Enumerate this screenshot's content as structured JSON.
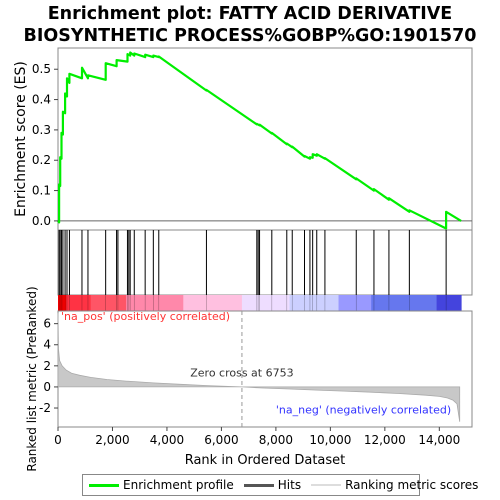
{
  "title_line1": "Enrichment plot: FATTY ACID DERIVATIVE",
  "title_line2": "BIOSYNTHETIC PROCESS%GOBP%GO:1901570",
  "colors": {
    "es_line": "#00ee00",
    "hits": "#000000",
    "metric_fill": "#c8c8c8",
    "pos_label": "#ff3333",
    "neg_label": "#3333ff",
    "zero_cross_line": "#999999"
  },
  "chart_data": {
    "type": "line",
    "title": "Enrichment plot: FATTY ACID DERIVATIVE BIOSYNTHETIC PROCESS%GOBP%GO:1901570",
    "xlabel": "Rank in Ordered Dataset",
    "ylabel_top": "Enrichment score (ES)",
    "ylabel_bottom": "Ranked list metric (PreRanked)",
    "xlim": [
      0,
      15200
    ],
    "x_ticks": [
      0,
      2000,
      4000,
      6000,
      8000,
      10000,
      12000,
      14000
    ],
    "x_tick_labels": [
      "0",
      "2,000",
      "4,000",
      "6,000",
      "8,000",
      "10,000",
      "12,000",
      "14,000"
    ],
    "es_ylim": [
      -0.03,
      0.57
    ],
    "es_ticks": [
      0.0,
      0.1,
      0.2,
      0.3,
      0.4,
      0.5
    ],
    "es_tick_labels": [
      "0.0",
      "0.1",
      "0.2",
      "0.3",
      "0.4",
      "0.5"
    ],
    "metric_ylim": [
      -3.8,
      7.2
    ],
    "metric_ticks": [
      -2,
      0,
      2,
      4,
      6
    ],
    "metric_tick_labels": [
      "-2",
      "0",
      "2",
      "4",
      "6"
    ],
    "series": [
      {
        "name": "Enrichment profile",
        "x": [
          0,
          40,
          40,
          80,
          80,
          130,
          130,
          180,
          180,
          260,
          260,
          330,
          330,
          420,
          420,
          880,
          880,
          1100,
          1100,
          1750,
          1750,
          2150,
          2150,
          2550,
          2550,
          2650,
          2650,
          2800,
          2800,
          3200,
          3200,
          3500,
          3500,
          3700,
          3700,
          5450,
          5450,
          7300,
          7300,
          7400,
          7400,
          7850,
          7850,
          8400,
          8400,
          8600,
          8600,
          9050,
          9050,
          9250,
          9250,
          9350,
          9350,
          9500,
          9500,
          9800,
          9800,
          10950,
          10950,
          11600,
          11600,
          12150,
          12150,
          12900,
          12900,
          14250,
          14250,
          14800
        ],
        "y": [
          0.0,
          -0.005,
          0.12,
          0.115,
          0.21,
          0.205,
          0.29,
          0.285,
          0.36,
          0.355,
          0.42,
          0.41,
          0.47,
          0.455,
          0.485,
          0.47,
          0.505,
          0.47,
          0.48,
          0.465,
          0.52,
          0.51,
          0.53,
          0.525,
          0.55,
          0.545,
          0.555,
          0.545,
          0.552,
          0.54,
          0.548,
          0.54,
          0.545,
          0.54,
          0.542,
          0.43,
          0.432,
          0.318,
          0.32,
          0.315,
          0.317,
          0.288,
          0.29,
          0.253,
          0.255,
          0.243,
          0.245,
          0.212,
          0.214,
          0.205,
          0.21,
          0.208,
          0.22,
          0.215,
          0.22,
          0.205,
          0.207,
          0.137,
          0.14,
          0.1,
          0.105,
          0.07,
          0.075,
          0.03,
          0.035,
          -0.025,
          0.03,
          0.0
        ]
      }
    ],
    "hits_x": [
      40,
      80,
      130,
      180,
      260,
      330,
      420,
      880,
      1100,
      1750,
      2150,
      2200,
      2550,
      2600,
      2650,
      2800,
      3200,
      3500,
      3700,
      5450,
      7300,
      7350,
      7400,
      7850,
      8400,
      8600,
      9050,
      9250,
      9350,
      9500,
      9800,
      10950,
      11600,
      12150,
      12900,
      14250
    ],
    "ranked_metric": {
      "x": [
        0,
        20,
        60,
        150,
        300,
        500,
        800,
        1200,
        1800,
        2500,
        3500,
        4500,
        5500,
        6000,
        6753,
        7500,
        8500,
        9500,
        10500,
        11500,
        12500,
        13500,
        14000,
        14300,
        14500,
        14650,
        14750
      ],
      "y": [
        7.0,
        3.6,
        2.5,
        2.0,
        1.6,
        1.3,
        1.1,
        0.9,
        0.7,
        0.55,
        0.38,
        0.25,
        0.13,
        0.08,
        0.0,
        -0.1,
        -0.2,
        -0.3,
        -0.4,
        -0.5,
        -0.62,
        -0.78,
        -0.9,
        -1.05,
        -1.25,
        -1.6,
        -3.3
      ]
    },
    "zero_cross": {
      "x": 6753,
      "label": "Zero cross at 6753"
    },
    "annotations": {
      "pos": "'na_pos' (positively correlated)",
      "neg": "'na_neg' (negatively correlated)"
    },
    "gradient_bar": {
      "x": [
        0,
        300,
        1200,
        2500,
        4600,
        6753,
        8500,
        10300,
        11500,
        13900,
        14800
      ],
      "colors": [
        "#ff0000",
        "#ff3344",
        "#ff5566",
        "#ff88aa",
        "#ffc0e0",
        "#eeddff",
        "#ccd0ff",
        "#9999ff",
        "#6677ee",
        "#4444dd",
        "#0000cc"
      ]
    }
  },
  "legend": {
    "items": [
      {
        "label": "Enrichment profile",
        "color": "#00ee00",
        "width": 3
      },
      {
        "label": "Hits",
        "color": "#555555",
        "width": 3
      },
      {
        "label": "Ranking metric scores",
        "color": "#dddddd",
        "width": 2
      }
    ]
  }
}
